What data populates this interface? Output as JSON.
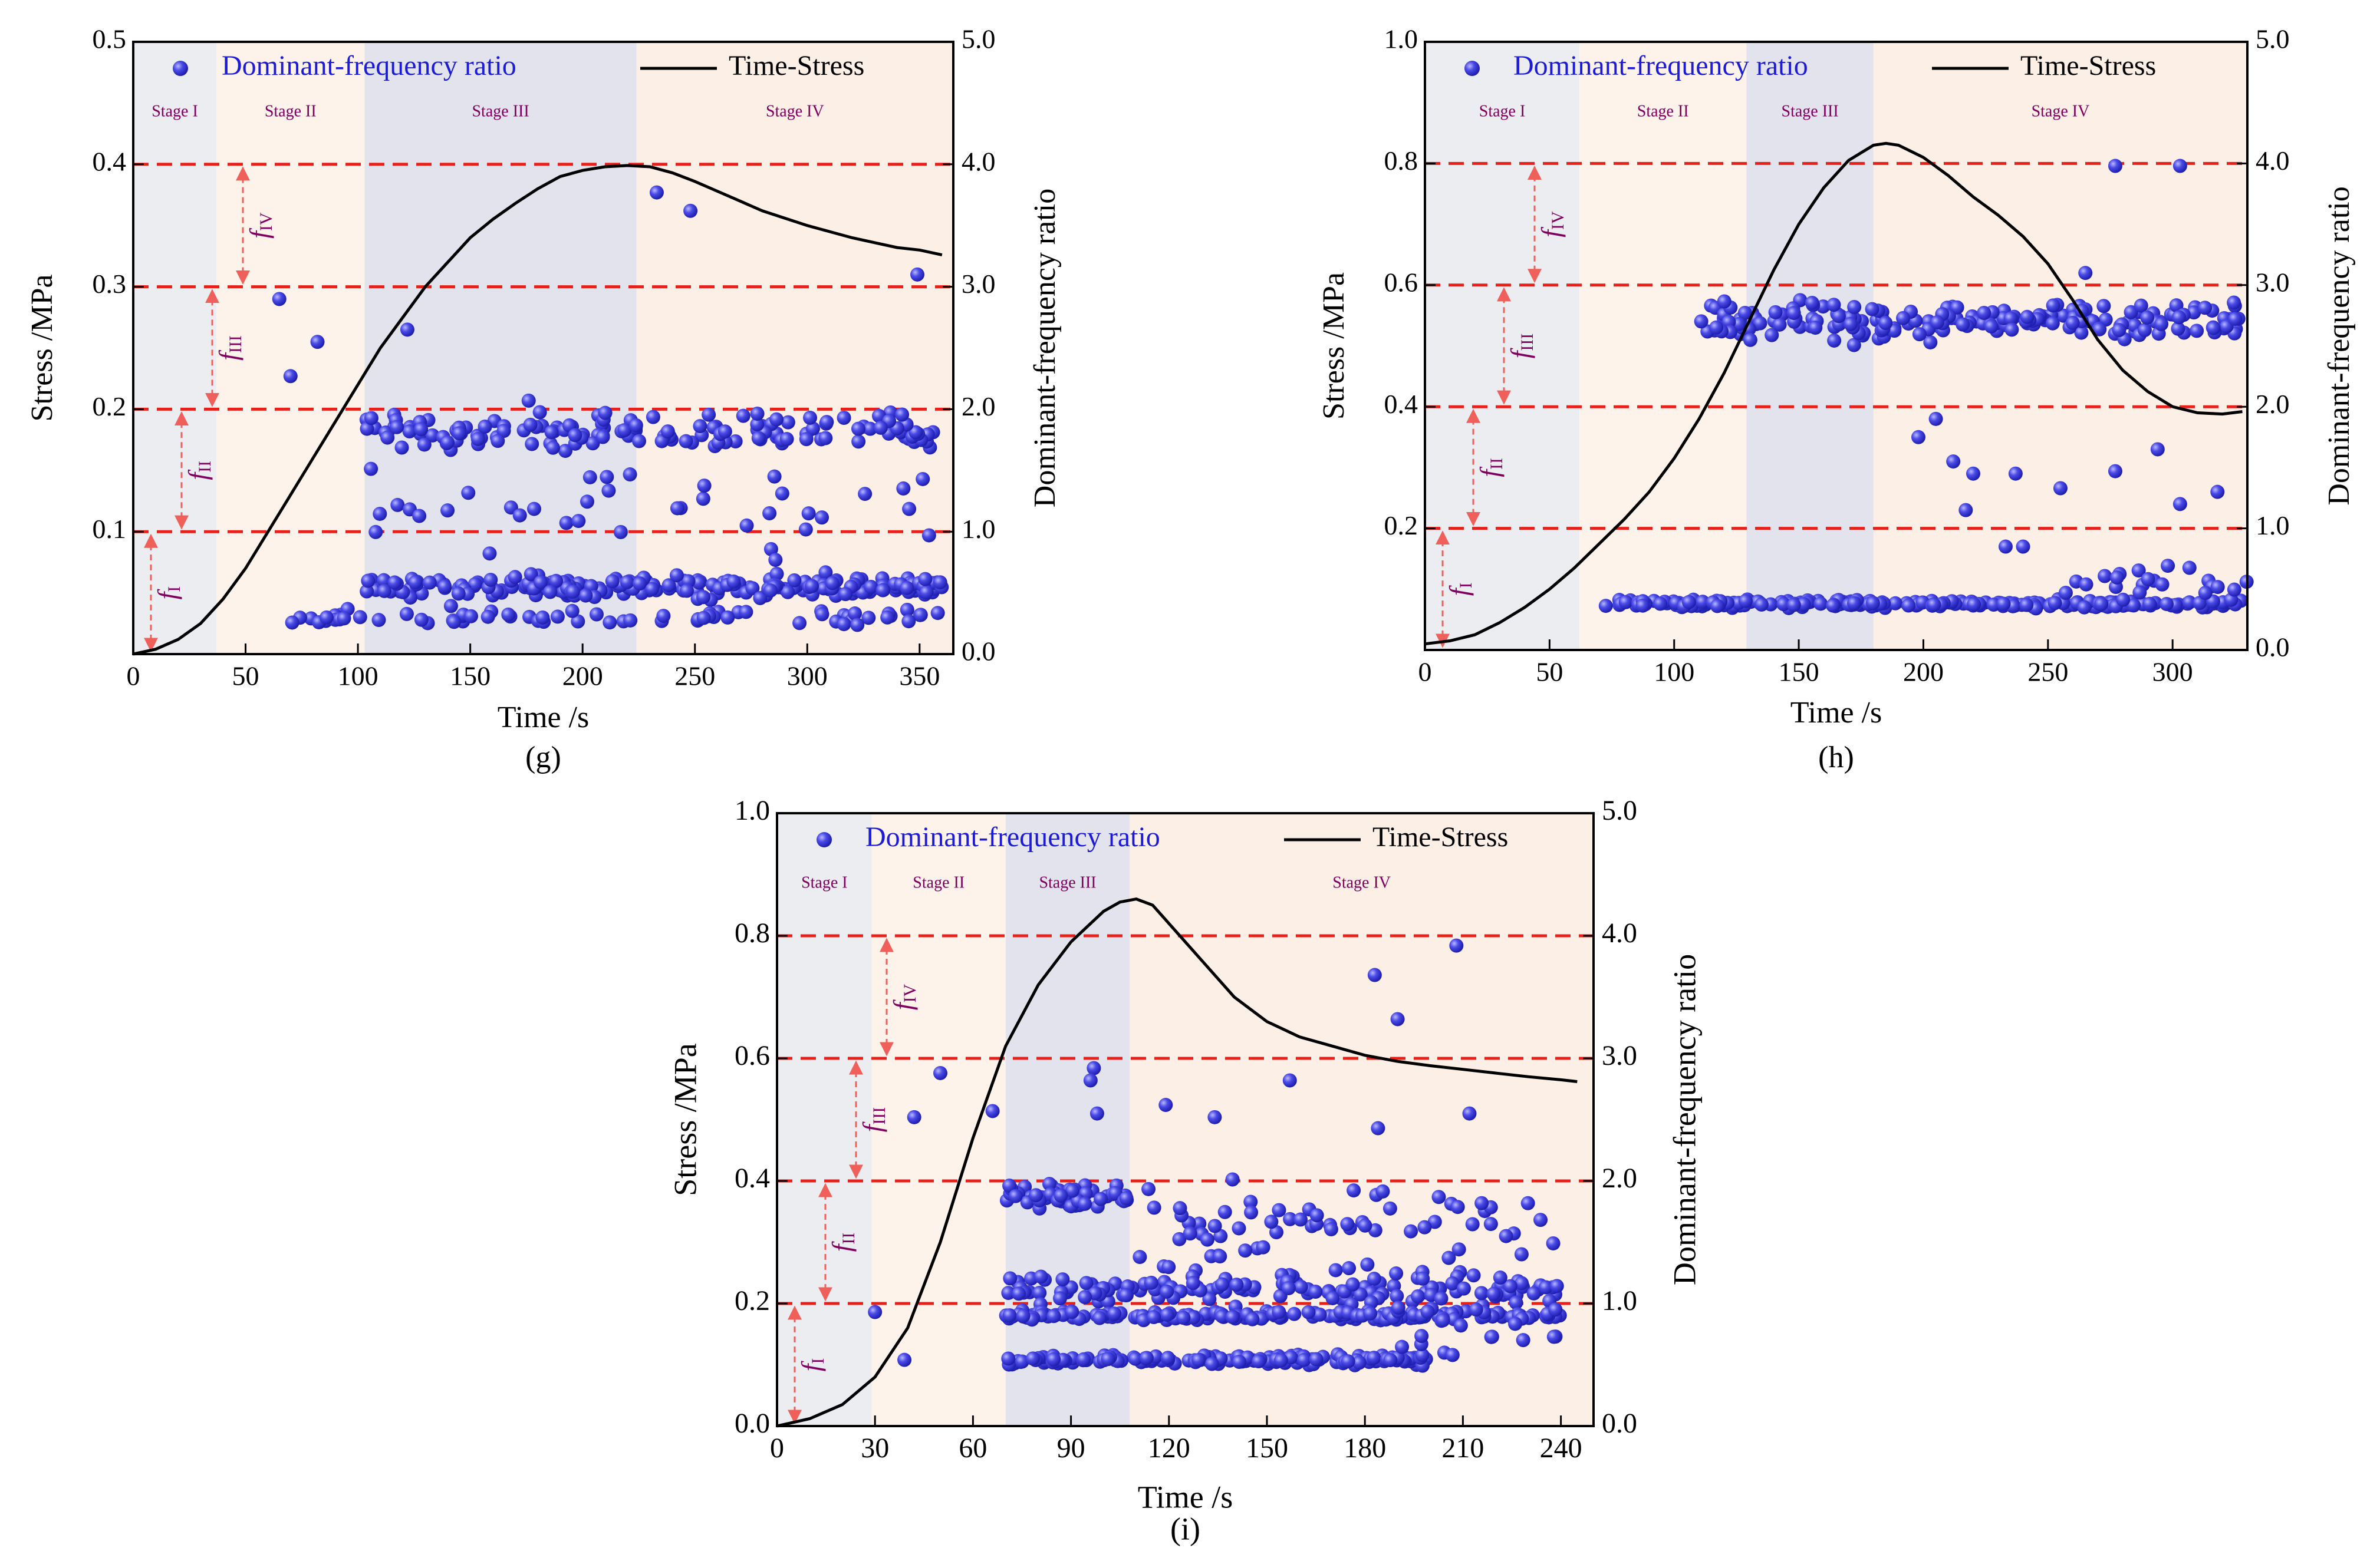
{
  "figure": {
    "background": "#ffffff",
    "colors": {
      "stage_gray": "#ecedf1",
      "stage_cream": "#fdf3ea",
      "stage_lavender": "#e3e3ee",
      "stage_peach": "#fbefe6",
      "threshold_line": "#e8201a",
      "arrow": "#f0605a",
      "stage_label": "#800060",
      "scatter": "#3a3ae8",
      "legend_text": "#1c1cd8",
      "curve": "#000000"
    }
  },
  "chart_data": [
    {
      "id": "g",
      "type": "scatter+line",
      "panel_label": "(g)",
      "xlabel": "Time /s",
      "ylabel_left": "Stress /MPa",
      "ylabel_right": "Dominant-frequency ratio",
      "xlim": [
        0,
        365
      ],
      "ylim_left": [
        0,
        0.5
      ],
      "ylim_right": [
        0,
        5.0
      ],
      "xticks": [
        0,
        50,
        100,
        150,
        200,
        250,
        300,
        350
      ],
      "xtick_labels": [
        "0",
        "50",
        "100",
        "150",
        "200",
        "250",
        "300",
        "350"
      ],
      "yticks_left": [
        0.1,
        0.2,
        0.3,
        0.4,
        0.5
      ],
      "ytick_labels_left": [
        "0.1",
        "0.2",
        "0.3",
        "0.4",
        "0.5"
      ],
      "yticks_right": [
        0,
        1,
        2,
        3,
        4,
        5
      ],
      "ytick_labels_right": [
        "0.0",
        "1.0",
        "2.0",
        "3.0",
        "4.0",
        "5.0"
      ],
      "legend": {
        "scatter": "Dominant-frequency ratio",
        "line": "Time-Stress",
        "placement": "top"
      },
      "stages": [
        {
          "label": "Stage I",
          "start": 0,
          "end": 37,
          "color": "#ecedf1"
        },
        {
          "label": "Stage II",
          "start": 37,
          "end": 103,
          "color": "#fdf3ea"
        },
        {
          "label": "Stage III",
          "start": 103,
          "end": 224,
          "color": "#e3e3ee"
        },
        {
          "label": "Stage IV",
          "start": 224,
          "end": 365,
          "color": "#fbefe6"
        }
      ],
      "thresholds": [
        1.0,
        2.0,
        3.0,
        4.0
      ],
      "f_labels": [
        {
          "main": "f",
          "sub": "I",
          "lo": 0,
          "hi": 1.0
        },
        {
          "main": "f",
          "sub": "II",
          "lo": 1.0,
          "hi": 2.0
        },
        {
          "main": "f",
          "sub": "III",
          "lo": 2.0,
          "hi": 3.0
        },
        {
          "main": "f",
          "sub": "IV",
          "lo": 3.0,
          "hi": 4.0
        }
      ],
      "time_stress": [
        [
          0,
          0
        ],
        [
          10,
          0.004
        ],
        [
          20,
          0.012
        ],
        [
          30,
          0.025
        ],
        [
          40,
          0.045
        ],
        [
          50,
          0.07
        ],
        [
          60,
          0.1
        ],
        [
          70,
          0.13
        ],
        [
          80,
          0.16
        ],
        [
          90,
          0.19
        ],
        [
          100,
          0.22
        ],
        [
          110,
          0.25
        ],
        [
          120,
          0.275
        ],
        [
          130,
          0.3
        ],
        [
          140,
          0.32
        ],
        [
          150,
          0.34
        ],
        [
          160,
          0.355
        ],
        [
          170,
          0.368
        ],
        [
          180,
          0.38
        ],
        [
          190,
          0.39
        ],
        [
          200,
          0.395
        ],
        [
          210,
          0.398
        ],
        [
          220,
          0.399
        ],
        [
          230,
          0.398
        ],
        [
          240,
          0.393
        ],
        [
          250,
          0.386
        ],
        [
          260,
          0.378
        ],
        [
          270,
          0.37
        ],
        [
          280,
          0.362
        ],
        [
          290,
          0.356
        ],
        [
          300,
          0.35
        ],
        [
          310,
          0.345
        ],
        [
          320,
          0.34
        ],
        [
          330,
          0.336
        ],
        [
          340,
          0.332
        ],
        [
          350,
          0.33
        ],
        [
          360,
          0.326
        ]
      ],
      "scatter": {
        "outliers": [
          [
            65,
            2.9
          ],
          [
            70,
            2.27
          ],
          [
            82,
            2.55
          ],
          [
            122,
            2.65
          ],
          [
            176,
            2.07
          ],
          [
            233,
            3.77
          ],
          [
            248,
            3.62
          ],
          [
            349,
            3.1
          ]
        ],
        "clusters": [
          {
            "x_range": [
              103,
              360
            ],
            "y_center": 1.82,
            "y_spread": 0.16,
            "count": 150
          },
          {
            "x_range": [
              103,
              360
            ],
            "y_center": 0.55,
            "y_spread": 0.09,
            "count": 230
          },
          {
            "x_range": [
              100,
              360
            ],
            "y_center": 1.2,
            "y_spread": 0.35,
            "count": 38
          },
          {
            "x_range": [
              60,
              360
            ],
            "y_center": 0.3,
            "y_spread": 0.08,
            "count": 70
          }
        ]
      }
    },
    {
      "id": "h",
      "type": "scatter+line",
      "panel_label": "(h)",
      "xlabel": "Time /s",
      "ylabel_left": "Stress /MPa",
      "ylabel_right": "Dominant-frequency ratio",
      "xlim": [
        0,
        330
      ],
      "ylim_left": [
        0,
        1.0
      ],
      "ylim_right": [
        0,
        5.0
      ],
      "xticks": [
        0,
        50,
        100,
        150,
        200,
        250,
        300
      ],
      "xtick_labels": [
        "0",
        "50",
        "100",
        "150",
        "200",
        "250",
        "300"
      ],
      "yticks_left": [
        0.2,
        0.4,
        0.6,
        0.8,
        1.0
      ],
      "ytick_labels_left": [
        "0.2",
        "0.4",
        "0.6",
        "0.8",
        "1.0"
      ],
      "yticks_right": [
        0,
        1,
        2,
        3,
        4,
        5
      ],
      "ytick_labels_right": [
        "0.0",
        "1.0",
        "2.0",
        "3.0",
        "4.0",
        "5.0"
      ],
      "legend": {
        "scatter": "Dominant-frequency ratio",
        "line": "Time-Stress",
        "placement": "top"
      },
      "stages": [
        {
          "label": "Stage I",
          "start": 0,
          "end": 62,
          "color": "#ecedf1"
        },
        {
          "label": "Stage II",
          "start": 62,
          "end": 129,
          "color": "#fdf3ea"
        },
        {
          "label": "Stage III",
          "start": 129,
          "end": 180,
          "color": "#e3e3ee"
        },
        {
          "label": "Stage IV",
          "start": 180,
          "end": 330,
          "color": "#fbefe6"
        }
      ],
      "thresholds": [
        1.0,
        2.0,
        3.0,
        4.0
      ],
      "f_labels": [
        {
          "main": "f",
          "sub": "I",
          "lo": 0,
          "hi": 1.0
        },
        {
          "main": "f",
          "sub": "II",
          "lo": 1.0,
          "hi": 2.0
        },
        {
          "main": "f",
          "sub": "III",
          "lo": 2.0,
          "hi": 3.0
        },
        {
          "main": "f",
          "sub": "IV",
          "lo": 3.0,
          "hi": 4.0
        }
      ],
      "time_stress": [
        [
          0,
          0.01
        ],
        [
          10,
          0.015
        ],
        [
          20,
          0.025
        ],
        [
          30,
          0.045
        ],
        [
          40,
          0.07
        ],
        [
          50,
          0.1
        ],
        [
          60,
          0.135
        ],
        [
          70,
          0.175
        ],
        [
          80,
          0.215
        ],
        [
          90,
          0.26
        ],
        [
          100,
          0.315
        ],
        [
          110,
          0.38
        ],
        [
          120,
          0.455
        ],
        [
          130,
          0.54
        ],
        [
          140,
          0.625
        ],
        [
          150,
          0.7
        ],
        [
          160,
          0.76
        ],
        [
          170,
          0.805
        ],
        [
          180,
          0.83
        ],
        [
          185,
          0.833
        ],
        [
          190,
          0.83
        ],
        [
          200,
          0.81
        ],
        [
          210,
          0.78
        ],
        [
          220,
          0.745
        ],
        [
          230,
          0.715
        ],
        [
          240,
          0.68
        ],
        [
          250,
          0.635
        ],
        [
          260,
          0.575
        ],
        [
          270,
          0.51
        ],
        [
          280,
          0.46
        ],
        [
          290,
          0.425
        ],
        [
          300,
          0.4
        ],
        [
          310,
          0.39
        ],
        [
          320,
          0.388
        ],
        [
          328,
          0.392
        ]
      ],
      "scatter": {
        "outliers": [
          [
            205,
            1.9
          ],
          [
            212,
            1.55
          ],
          [
            220,
            1.45
          ],
          [
            237,
            1.45
          ],
          [
            255,
            1.33
          ],
          [
            277,
            1.47
          ],
          [
            294,
            1.65
          ],
          [
            303,
            1.2
          ],
          [
            318,
            1.3
          ],
          [
            198,
            1.75
          ],
          [
            217,
            1.15
          ],
          [
            233,
            0.85
          ],
          [
            240,
            0.85
          ],
          [
            277,
            3.98
          ],
          [
            303,
            3.98
          ],
          [
            265,
            3.1
          ]
        ],
        "clusters": [
          {
            "x_range": [
              110,
              330
            ],
            "y_center": 2.7,
            "y_spread": 0.16,
            "count": 200
          },
          {
            "x_range": [
              72,
              330
            ],
            "y_center": 0.38,
            "y_spread": 0.03,
            "count": 240
          },
          {
            "x_range": [
              250,
              330
            ],
            "y_center": 0.55,
            "y_spread": 0.12,
            "count": 22
          }
        ]
      }
    },
    {
      "id": "i",
      "type": "scatter+line",
      "panel_label": "(i)",
      "xlabel": "Time  /s",
      "ylabel_left": "Stress /MPa",
      "ylabel_right": "Dominant-frequency ratio",
      "xlim": [
        0,
        250
      ],
      "ylim_left": [
        0,
        1.0
      ],
      "ylim_right": [
        0,
        5.0
      ],
      "xticks": [
        0,
        30,
        60,
        90,
        120,
        150,
        180,
        210,
        240
      ],
      "xtick_labels": [
        "0",
        "30",
        "60",
        "90",
        "120",
        "150",
        "180",
        "210",
        "240"
      ],
      "yticks_left": [
        0.0,
        0.2,
        0.4,
        0.6,
        0.8,
        1.0
      ],
      "ytick_labels_left": [
        "0.0",
        "0.2",
        "0.4",
        "0.6",
        "0.8",
        "1.0"
      ],
      "yticks_right": [
        0,
        1,
        2,
        3,
        4,
        5
      ],
      "ytick_labels_right": [
        "0.0",
        "1.0",
        "2.0",
        "3.0",
        "4.0",
        "5.0"
      ],
      "legend": {
        "scatter": "Dominant-frequency ratio",
        "line": "Time-Stress",
        "placement": "top"
      },
      "stages": [
        {
          "label": "Stage I",
          "start": 0,
          "end": 29,
          "color": "#ecedf1"
        },
        {
          "label": "Stage II",
          "start": 29,
          "end": 70,
          "color": "#fdf3ea"
        },
        {
          "label": "Stage III",
          "start": 70,
          "end": 108,
          "color": "#e3e3ee"
        },
        {
          "label": "Stage IV",
          "start": 108,
          "end": 250,
          "color": "#fbefe6"
        }
      ],
      "thresholds": [
        1.0,
        2.0,
        3.0,
        4.0
      ],
      "f_labels": [
        {
          "main": "f",
          "sub": "I",
          "lo": 0,
          "hi": 1.0
        },
        {
          "main": "f",
          "sub": "II",
          "lo": 1.0,
          "hi": 2.0
        },
        {
          "main": "f",
          "sub": "III",
          "lo": 2.0,
          "hi": 3.0
        },
        {
          "main": "f",
          "sub": "IV",
          "lo": 3.0,
          "hi": 4.0
        }
      ],
      "time_stress": [
        [
          0,
          0
        ],
        [
          10,
          0.012
        ],
        [
          20,
          0.035
        ],
        [
          30,
          0.08
        ],
        [
          40,
          0.16
        ],
        [
          50,
          0.3
        ],
        [
          60,
          0.47
        ],
        [
          70,
          0.62
        ],
        [
          80,
          0.72
        ],
        [
          90,
          0.79
        ],
        [
          100,
          0.84
        ],
        [
          105,
          0.855
        ],
        [
          110,
          0.86
        ],
        [
          115,
          0.85
        ],
        [
          120,
          0.82
        ],
        [
          130,
          0.76
        ],
        [
          140,
          0.7
        ],
        [
          150,
          0.66
        ],
        [
          160,
          0.635
        ],
        [
          170,
          0.62
        ],
        [
          180,
          0.605
        ],
        [
          190,
          0.595
        ],
        [
          200,
          0.588
        ],
        [
          210,
          0.582
        ],
        [
          220,
          0.576
        ],
        [
          230,
          0.57
        ],
        [
          240,
          0.565
        ],
        [
          245,
          0.562
        ]
      ],
      "scatter": {
        "outliers": [
          [
            30,
            0.93
          ],
          [
            39,
            0.54
          ],
          [
            42,
            2.52
          ],
          [
            50,
            2.88
          ],
          [
            66,
            2.57
          ],
          [
            97,
            2.92
          ],
          [
            96,
            2.82
          ],
          [
            98,
            2.55
          ],
          [
            119,
            2.62
          ],
          [
            134,
            2.52
          ],
          [
            157,
            2.82
          ],
          [
            184,
            2.43
          ],
          [
            183,
            3.68
          ],
          [
            190,
            3.32
          ],
          [
            208,
            3.92
          ],
          [
            212,
            2.55
          ]
        ],
        "clusters": [
          {
            "x_range": [
              70,
              108
            ],
            "y_center": 1.87,
            "y_spread": 0.1,
            "count": 60
          },
          {
            "x_range": [
              108,
              240
            ],
            "y_center": 1.6,
            "y_spread": 0.35,
            "count": 70
          },
          {
            "x_range": [
              70,
              240
            ],
            "y_center": 1.12,
            "y_spread": 0.12,
            "count": 150
          },
          {
            "x_range": [
              70,
              240
            ],
            "y_center": 0.9,
            "y_spread": 0.04,
            "count": 180
          },
          {
            "x_range": [
              70,
              200
            ],
            "y_center": 0.54,
            "y_spread": 0.04,
            "count": 170
          },
          {
            "x_range": [
              190,
              240
            ],
            "y_center": 0.8,
            "y_spread": 0.3,
            "count": 20
          }
        ]
      }
    }
  ]
}
